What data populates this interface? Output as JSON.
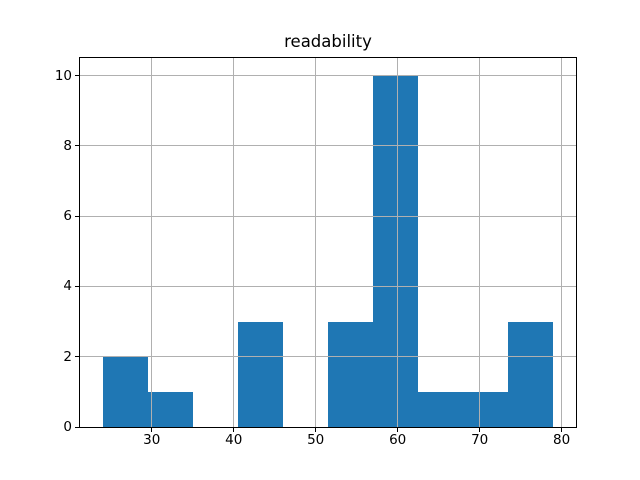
{
  "title": "readability",
  "colors": {
    "bar": "#1f77b4",
    "grid": "#b0b0b0",
    "spine": "#000000",
    "text": "#000000",
    "background": "#ffffff"
  },
  "chart_data": {
    "type": "bar",
    "subtype": "histogram",
    "title": "readability",
    "xlabel": "",
    "ylabel": "",
    "bin_edges": [
      24,
      29.5,
      35,
      40.5,
      46,
      51.5,
      57,
      62.5,
      68,
      73.5,
      79
    ],
    "counts": [
      2,
      1,
      0,
      3,
      0,
      3,
      10,
      1,
      1,
      3
    ],
    "x_ticks": [
      30,
      40,
      50,
      60,
      70,
      80
    ],
    "y_ticks": [
      0,
      2,
      4,
      6,
      8,
      10
    ],
    "xlim": [
      21.25,
      81.75
    ],
    "ylim": [
      0,
      10.5
    ],
    "grid": true,
    "grid_above_bars": true,
    "legend": false
  }
}
